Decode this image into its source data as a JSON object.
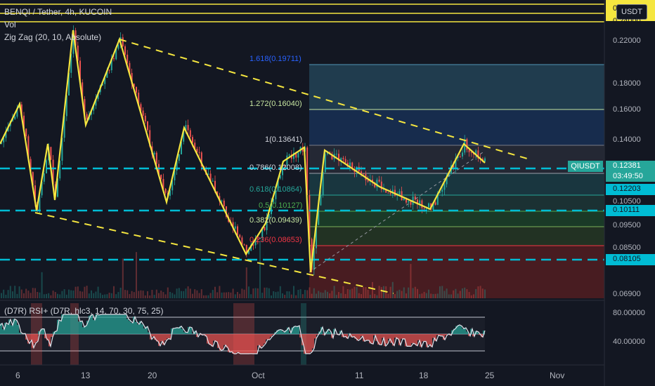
{
  "legend": {
    "symbol": "BENQI / Tether, 4h, KUCOIN",
    "vol": "Vol",
    "zigzag": "Zig Zag (20, 10, Absolute)",
    "rsi": "(D7R) RSI+ (D7R, hlc3, 14, 70, 30, 75, 25)"
  },
  "currency_badge": "USDT",
  "price_axis": {
    "labels": [
      "0.24000",
      "0.22000",
      "0.18000",
      "0.16000",
      "0.14000",
      "0.12381",
      "0.12203",
      "0.10500",
      "0.10111",
      "0.09500",
      "0.08500",
      "0.08105",
      "0.06900"
    ],
    "countdown": "03:49:50",
    "symbol_tag": "QIUSDT",
    "top_cut": "0"
  },
  "rsi_axis": [
    "80.00000",
    "40.00000"
  ],
  "time_axis": [
    "6",
    "13",
    "20",
    "Oct",
    "11",
    "18",
    "25",
    "Nov"
  ],
  "fib_levels": [
    {
      "label": "1.618(0.19711)",
      "color": "#2962ff"
    },
    {
      "label": "1.272(0.16040)",
      "color": "#c7e6a1"
    },
    {
      "label": "1(0.13641)",
      "color": "#d1d4dc"
    },
    {
      "label": "0.786(0.12008)",
      "color": "#d1d4dc"
    },
    {
      "label": "0.618(0.10864)",
      "color": "#26a69a"
    },
    {
      "label": "0.5(0.10127)",
      "color": "#4caf50"
    },
    {
      "label": "0.382(0.09439)",
      "color": "#c7e6a1"
    },
    {
      "label": "0.236(0.08653)",
      "color": "#f23645"
    }
  ],
  "colors": {
    "background": "#131722",
    "up": "#26a69a",
    "down": "#ef5350",
    "zigzag": "#f5e63f",
    "cyan_line": "#00bcd4",
    "price_tag": "#26a69a"
  }
}
